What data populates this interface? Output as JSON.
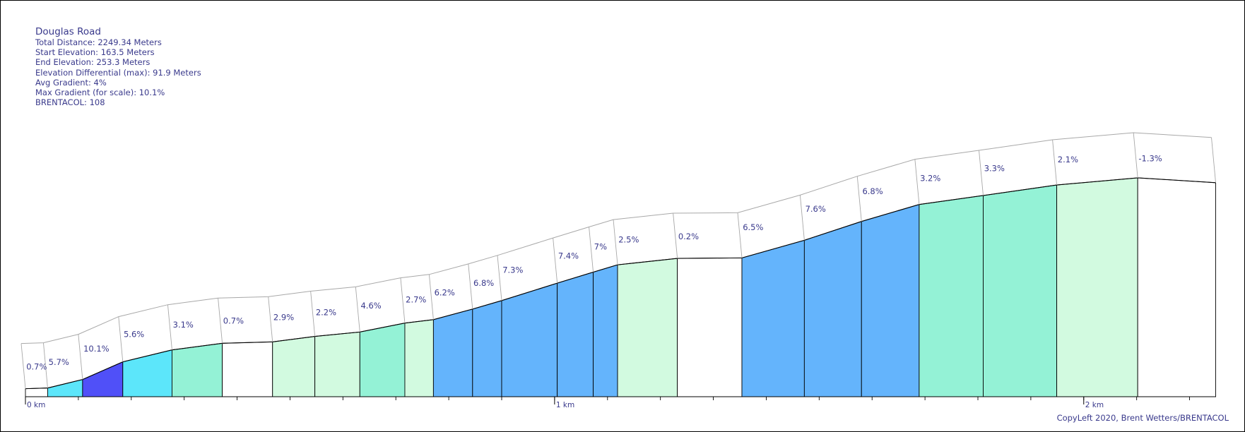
{
  "stats": {
    "title": "Douglas Road",
    "total_distance": "Total Distance: 2249.34 Meters",
    "start_elevation": "Start Elevation: 163.5 Meters",
    "end_elevation": "End Elevation: 253.3 Meters",
    "elevation_differential": "Elevation Differential (max): 91.9 Meters",
    "avg_gradient": "Avg Gradient: 4%",
    "max_gradient": "Max Gradient (for scale): 10.1%",
    "brentacol": "BRENTACOL: 108"
  },
  "copyleft": "CopyLeft 2020, Brent Wetters/BRENTACOL",
  "colors": {
    "text": "#3a3a8c",
    "grade_flat": "#ffffff",
    "grade_easy": "#d2fae0",
    "grade_moderate": "#94f2d6",
    "grade_medium": "#64b4fc",
    "grade_hard": "#5ce6fa",
    "grade_steep": "#5050f8",
    "band_stroke": "#a8a8a8"
  },
  "chart_data": {
    "type": "area",
    "title": "",
    "xlabel": "",
    "ylabel": "",
    "xlim": [
      0,
      2250
    ],
    "ylim": [
      160,
      255
    ],
    "x_unit": "m",
    "y_unit": "m",
    "x_ticks": [
      {
        "value": 0,
        "label": "0 km"
      },
      {
        "value": 1000,
        "label": "1 km"
      },
      {
        "value": 2000,
        "label": "2 km"
      }
    ],
    "minor_tick_step": 100,
    "profile": [
      {
        "x": 0,
        "elevation": 163.5
      },
      {
        "x": 42,
        "elevation": 163.8
      },
      {
        "x": 108,
        "elevation": 167.5
      },
      {
        "x": 184,
        "elevation": 175.2
      },
      {
        "x": 277,
        "elevation": 180.4
      },
      {
        "x": 372,
        "elevation": 183.3
      },
      {
        "x": 467,
        "elevation": 183.9
      },
      {
        "x": 547,
        "elevation": 186.3
      },
      {
        "x": 632,
        "elevation": 188.2
      },
      {
        "x": 717,
        "elevation": 192.1
      },
      {
        "x": 771,
        "elevation": 193.6
      },
      {
        "x": 845,
        "elevation": 198.2
      },
      {
        "x": 900,
        "elevation": 201.9
      },
      {
        "x": 1005,
        "elevation": 209.5
      },
      {
        "x": 1073,
        "elevation": 214.3
      },
      {
        "x": 1119,
        "elevation": 217.5
      },
      {
        "x": 1232,
        "elevation": 220.3
      },
      {
        "x": 1354,
        "elevation": 220.5
      },
      {
        "x": 1472,
        "elevation": 228.2
      },
      {
        "x": 1580,
        "elevation": 236.4
      },
      {
        "x": 1689,
        "elevation": 243.8
      },
      {
        "x": 1810,
        "elevation": 247.7
      },
      {
        "x": 1949,
        "elevation": 252.3
      },
      {
        "x": 2102,
        "elevation": 255.4
      },
      {
        "x": 2249.34,
        "elevation": 253.3
      }
    ],
    "segments": [
      {
        "label": "0.7%",
        "grade": 0.7,
        "color": "#ffffff"
      },
      {
        "label": "5.7%",
        "grade": 5.7,
        "color": "#5ce6fa"
      },
      {
        "label": "10.1%",
        "grade": 10.1,
        "color": "#5050f8"
      },
      {
        "label": "5.6%",
        "grade": 5.6,
        "color": "#5ce6fa"
      },
      {
        "label": "3.1%",
        "grade": 3.1,
        "color": "#94f2d6"
      },
      {
        "label": "0.7%",
        "grade": 0.7,
        "color": "#ffffff"
      },
      {
        "label": "2.9%",
        "grade": 2.9,
        "color": "#d2fae0"
      },
      {
        "label": "2.2%",
        "grade": 2.2,
        "color": "#d2fae0"
      },
      {
        "label": "4.6%",
        "grade": 4.6,
        "color": "#94f2d6"
      },
      {
        "label": "2.7%",
        "grade": 2.7,
        "color": "#d2fae0"
      },
      {
        "label": "6.2%",
        "grade": 6.2,
        "color": "#64b4fc"
      },
      {
        "label": "6.8%",
        "grade": 6.8,
        "color": "#64b4fc"
      },
      {
        "label": "7.3%",
        "grade": 7.3,
        "color": "#64b4fc"
      },
      {
        "label": "7.4%",
        "grade": 7.4,
        "color": "#64b4fc"
      },
      {
        "label": "7%",
        "grade": 7.0,
        "color": "#64b4fc"
      },
      {
        "label": "2.5%",
        "grade": 2.5,
        "color": "#d2fae0"
      },
      {
        "label": "0.2%",
        "grade": 0.2,
        "color": "#ffffff"
      },
      {
        "label": "6.5%",
        "grade": 6.5,
        "color": "#64b4fc"
      },
      {
        "label": "7.6%",
        "grade": 7.6,
        "color": "#64b4fc"
      },
      {
        "label": "6.8%",
        "grade": 6.8,
        "color": "#64b4fc"
      },
      {
        "label": "3.2%",
        "grade": 3.2,
        "color": "#94f2d6"
      },
      {
        "label": "3.3%",
        "grade": 3.3,
        "color": "#94f2d6"
      },
      {
        "label": "2.1%",
        "grade": 2.1,
        "color": "#d2fae0"
      },
      {
        "label": "-1.3%",
        "grade": -1.3,
        "color": "#ffffff"
      }
    ],
    "grid": false,
    "legend": "none"
  }
}
